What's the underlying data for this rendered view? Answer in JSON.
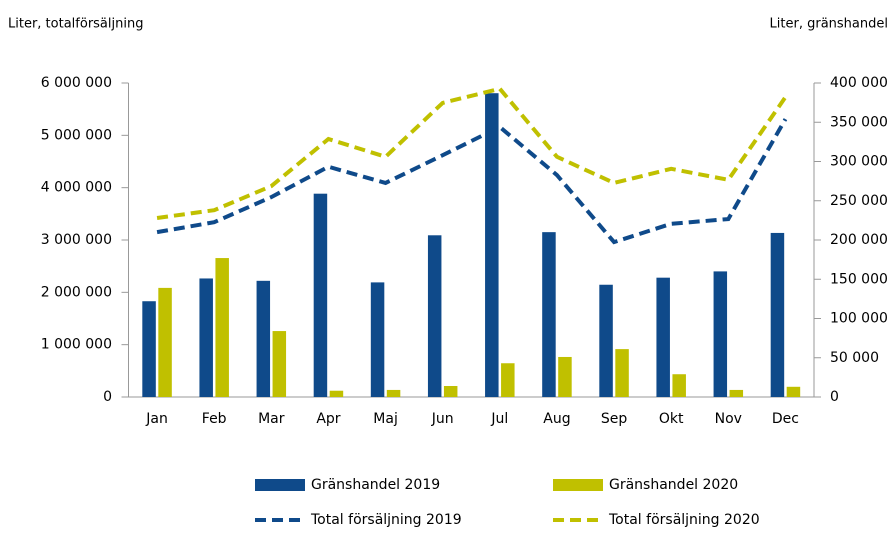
{
  "chart_data": {
    "type": "bar_line",
    "y_label": "Liter, totalförsäljning",
    "y2_label": "Liter, gränshandel",
    "categories": [
      "Jan",
      "Feb",
      "Mar",
      "Apr",
      "Maj",
      "Jun",
      "Jul",
      "Aug",
      "Sep",
      "Okt",
      "Nov",
      "Dec"
    ],
    "series": [
      {
        "name": "Gränshandel 2019",
        "kind": "bar",
        "axis": "y2",
        "color": "#0f4a8a",
        "values": [
          122000,
          151000,
          148000,
          259000,
          146000,
          206000,
          387000,
          210000,
          143000,
          152000,
          160000,
          209000
        ]
      },
      {
        "name": "Gränshandel 2020",
        "kind": "bar",
        "axis": "y2",
        "color": "#c0c000",
        "values": [
          139000,
          177000,
          84000,
          8000,
          9000,
          14000,
          43000,
          51000,
          61000,
          29000,
          9000,
          13000
        ]
      },
      {
        "name": "Total försäljning 2019",
        "kind": "line",
        "axis": "y",
        "color": "#0f4a8a",
        "values": [
          3150000,
          3340000,
          3820000,
          4400000,
          4090000,
          4620000,
          5160000,
          4240000,
          2960000,
          3310000,
          3400000,
          5310000
        ]
      },
      {
        "name": "Total försäljning 2020",
        "kind": "line",
        "axis": "y",
        "color": "#c0c000",
        "values": [
          3420000,
          3570000,
          4030000,
          4930000,
          4590000,
          5620000,
          5890000,
          4590000,
          4090000,
          4360000,
          4150000,
          5730000
        ]
      }
    ],
    "ylim": [
      0,
      6000000
    ],
    "yticks": [
      0,
      {
        "value": 1000000,
        "label": "1 000 000"
      },
      {
        "value": 2000000,
        "label": "2 000 000"
      },
      {
        "value": 3000000,
        "label": "3 000 000"
      },
      {
        "value": 4000000,
        "label": "4 000 000"
      },
      {
        "value": 5000000,
        "label": "5 000 000"
      },
      {
        "value": 6000000,
        "label": "6 000 000"
      }
    ],
    "y2lim": [
      0,
      400000
    ],
    "y2ticks": [
      0,
      {
        "value": 50000,
        "label": "50 000"
      },
      {
        "value": 100000,
        "label": "100 000"
      },
      {
        "value": 150000,
        "label": "150 000"
      },
      {
        "value": 200000,
        "label": "200 000"
      },
      {
        "value": 250000,
        "label": "250 000"
      },
      {
        "value": 300000,
        "label": "300 000"
      },
      {
        "value": 350000,
        "label": "350 000"
      },
      {
        "value": 400000,
        "label": "400 000"
      }
    ]
  }
}
